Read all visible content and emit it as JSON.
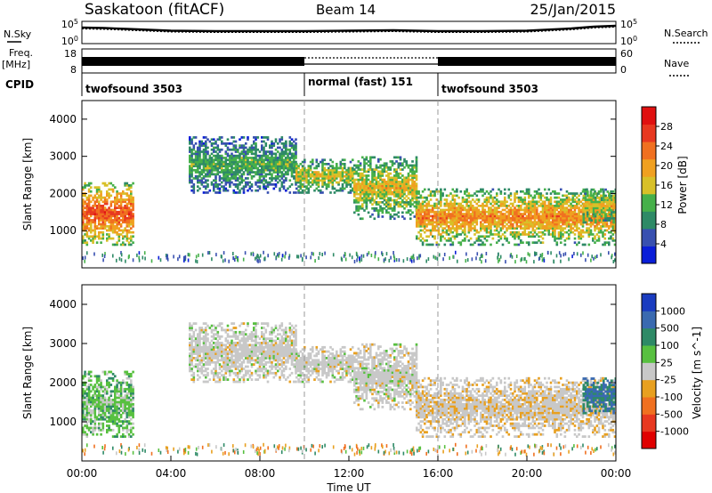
{
  "header": {
    "station": "Saskatoon (fitACF)",
    "beam": "Beam 14",
    "date": "25/Jan/2015"
  },
  "noise_panel": {
    "left_label": "N.Sky",
    "left_ticks": [
      "10^5",
      "10^0"
    ],
    "right_label": "N.Search",
    "right_ticks": [
      "10^5",
      "10^0"
    ]
  },
  "freq_panel": {
    "left_label_top": "Freq.",
    "left_label_bottom": "[MHz]",
    "left_ticks": [
      "18",
      "8"
    ],
    "right_label": "Nave",
    "right_ticks": [
      "60",
      "0"
    ]
  },
  "cpid_panel": {
    "label": "CPID",
    "segments": [
      {
        "start_hour": 0,
        "end_hour": 10,
        "text": "twofsound 3503"
      },
      {
        "start_hour": 10,
        "end_hour": 16,
        "text": "normal (fast) 151"
      },
      {
        "start_hour": 16,
        "end_hour": 24,
        "text": "twofsound 3503"
      }
    ]
  },
  "power_colorbar": {
    "label": "Power [dB]",
    "ticks": [
      "4",
      "8",
      "12",
      "16",
      "20",
      "24",
      "28"
    ],
    "colors": [
      "#0a1ed8",
      "#3850b0",
      "#2e8a66",
      "#46b04a",
      "#d8c028",
      "#f0a020",
      "#f07020",
      "#e83820",
      "#e01010"
    ]
  },
  "velocity_colorbar": {
    "label": "Velocity [m s^-1]",
    "ticks": [
      "1000",
      "500",
      "100",
      "25",
      "-25",
      "-100",
      "-500",
      "-1000"
    ],
    "colors": [
      "#1a3cc0",
      "#3a6ab0",
      "#2e8a66",
      "#58c040",
      "#c8c8c8",
      "#e8a020",
      "#f07020",
      "#e83820",
      "#e00000"
    ]
  },
  "x_axis": {
    "label": "Time UT",
    "tick_labels": [
      "00:00",
      "04:00",
      "08:00",
      "12:00",
      "16:00",
      "20:00",
      "00:00"
    ]
  },
  "chart_data": {
    "type": "heatmap",
    "x_range_hours": [
      0,
      24
    ],
    "ylim": [
      0,
      4500
    ],
    "y_ticks": [
      1000,
      2000,
      3000,
      4000
    ],
    "ylabel": "Slant Range [km]",
    "xlabel": "Time UT",
    "mode_changes_hours": [
      10,
      16
    ],
    "noise_level_trace": [
      [
        0,
        3.6
      ],
      [
        1,
        3.5
      ],
      [
        2,
        3.3
      ],
      [
        3,
        3.1
      ],
      [
        4,
        2.9
      ],
      [
        6,
        2.8
      ],
      [
        8,
        2.8
      ],
      [
        10,
        2.8
      ],
      [
        12,
        2.9
      ],
      [
        14,
        3.0
      ],
      [
        16,
        2.8
      ],
      [
        18,
        2.8
      ],
      [
        20,
        2.9
      ],
      [
        22,
        3.4
      ],
      [
        23,
        3.8
      ],
      [
        24,
        4.0
      ]
    ],
    "frequency_mhz": [
      {
        "start_hour": 0,
        "end_hour": 10,
        "value": "alternating 10-12"
      },
      {
        "start_hour": 10,
        "end_hour": 16,
        "value": 11
      },
      {
        "start_hour": 16,
        "end_hour": 24,
        "value": "alternating 10-12"
      }
    ],
    "backscatter_regions": [
      {
        "t_start": 0.0,
        "t_end": 2.3,
        "r_min": 600,
        "r_max": 2300,
        "power_db": 26,
        "velocity": 40
      },
      {
        "t_start": 4.8,
        "t_end": 9.6,
        "r_min": 2000,
        "r_max": 3500,
        "power_db": 12,
        "velocity": 0
      },
      {
        "t_start": 9.6,
        "t_end": 12.2,
        "r_min": 2000,
        "r_max": 2900,
        "power_db": 17,
        "velocity": 0
      },
      {
        "t_start": 12.2,
        "t_end": 15.0,
        "r_min": 1300,
        "r_max": 3000,
        "power_db": 18,
        "velocity": 0
      },
      {
        "t_start": 15.0,
        "t_end": 24.0,
        "r_min": 600,
        "r_max": 2100,
        "power_db": 22,
        "velocity": -10
      },
      {
        "t_start": 22.5,
        "t_end": 24.0,
        "r_min": 1200,
        "r_max": 2100,
        "power_db": 18,
        "velocity": 300
      }
    ]
  }
}
